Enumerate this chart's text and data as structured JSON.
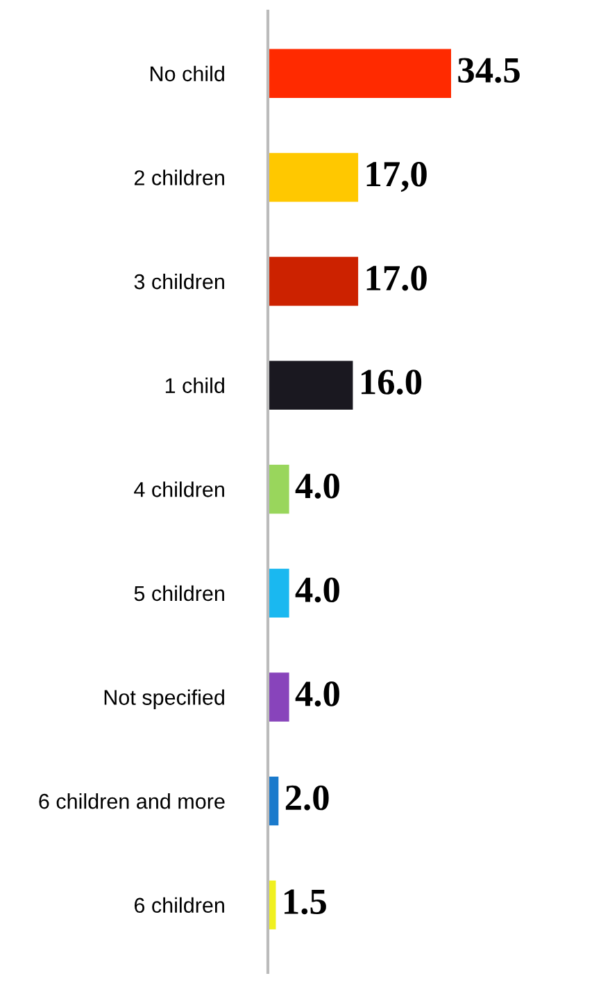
{
  "chart_data": {
    "type": "bar",
    "orientation": "horizontal",
    "categories": [
      "No child",
      "2 children",
      "3 children",
      "1 child",
      "4 children",
      "5 children",
      "Not specified",
      "6 children and more",
      "6 children"
    ],
    "values": [
      34.5,
      17.0,
      17.0,
      16.0,
      4.0,
      4.0,
      4.0,
      2.0,
      1.5
    ],
    "colors": [
      "#ff2a00",
      "#ffc800",
      "#cc2200",
      "#1a1820",
      "#99d65c",
      "#1ab8f0",
      "#8844bb",
      "#1a7acc",
      "#f0f020"
    ],
    "value_labels": [
      "34.5",
      "17,0",
      "17.0",
      "16.0",
      "4.0",
      "4.0",
      "4.0",
      "2.0",
      "1.5"
    ],
    "grid": false,
    "legend": false
  }
}
